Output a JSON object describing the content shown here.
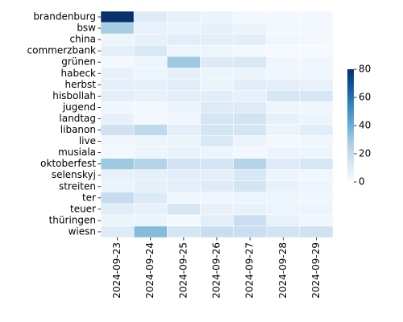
{
  "chart_data": {
    "type": "heatmap",
    "x": [
      "2024-09-23",
      "2024-09-24",
      "2024-09-25",
      "2024-09-26",
      "2024-09-27",
      "2024-09-28",
      "2024-09-29"
    ],
    "y": [
      "brandenburg",
      "bsw",
      "china",
      "commerzbank",
      "grünen",
      "habeck",
      "herbst",
      "hisbollah",
      "jugend",
      "landtag",
      "libanon",
      "live",
      "musiala",
      "oktoberfest",
      "selenskyj",
      "streiten",
      "ter",
      "teuer",
      "thüringen",
      "wiesn"
    ],
    "values": [
      [
        80,
        10,
        6,
        5,
        2,
        2,
        2
      ],
      [
        28,
        6,
        5,
        7,
        5,
        2,
        2
      ],
      [
        4,
        6,
        9,
        8,
        8,
        3,
        2
      ],
      [
        8,
        12,
        4,
        4,
        2,
        1,
        1
      ],
      [
        2,
        4,
        30,
        10,
        12,
        3,
        3
      ],
      [
        6,
        4,
        7,
        4,
        5,
        3,
        3
      ],
      [
        8,
        7,
        9,
        5,
        9,
        8,
        6
      ],
      [
        8,
        6,
        8,
        9,
        7,
        13,
        13
      ],
      [
        3,
        2,
        5,
        10,
        10,
        4,
        3
      ],
      [
        6,
        2,
        3,
        14,
        15,
        7,
        4
      ],
      [
        16,
        22,
        8,
        14,
        14,
        5,
        9
      ],
      [
        3,
        4,
        5,
        12,
        5,
        2,
        3
      ],
      [
        2,
        4,
        6,
        4,
        2,
        5,
        4
      ],
      [
        30,
        24,
        15,
        14,
        24,
        10,
        13
      ],
      [
        6,
        7,
        9,
        8,
        12,
        4,
        3
      ],
      [
        5,
        7,
        8,
        10,
        14,
        6,
        4
      ],
      [
        20,
        11,
        3,
        3,
        4,
        4,
        3
      ],
      [
        9,
        6,
        13,
        6,
        6,
        5,
        4
      ],
      [
        5,
        5,
        2,
        8,
        18,
        6,
        3
      ],
      [
        10,
        35,
        14,
        19,
        18,
        15,
        16
      ]
    ],
    "colormap": "Blues",
    "clim": [
      0,
      80
    ],
    "cticks": [
      0,
      20,
      40,
      60,
      80
    ]
  }
}
